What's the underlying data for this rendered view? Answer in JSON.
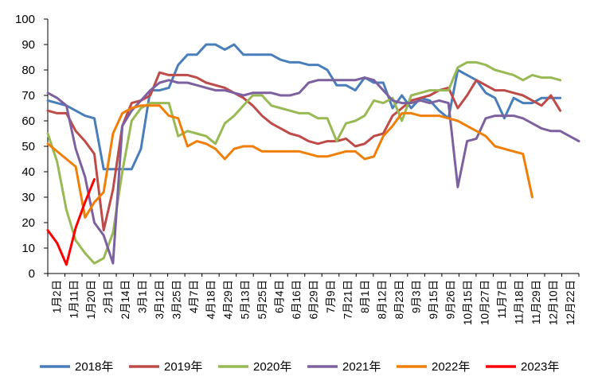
{
  "chart_data": {
    "type": "line",
    "title": "",
    "xlabel": "",
    "ylabel": "",
    "ylim": [
      0,
      100
    ],
    "yticks": [
      0,
      10,
      20,
      30,
      40,
      50,
      60,
      70,
      80,
      90,
      100
    ],
    "grid": false,
    "legend_position": "bottom",
    "x_ticks": [
      "1月2日",
      "1月11日",
      "1月20日",
      "2月1日",
      "2月14日",
      "3月1日",
      "3月12日",
      "3月25日",
      "4月7日",
      "4月18日",
      "4月29日",
      "5月13日",
      "5月25日",
      "6月4日",
      "6月16日",
      "6月29日",
      "7月9日",
      "7月21日",
      "8月1日",
      "8月12日",
      "8月23日",
      "9月3日",
      "9月15日",
      "9月26日",
      "10月15日",
      "10月27日",
      "11月7日",
      "11月18日",
      "11月29日",
      "12月10日",
      "12月22日"
    ],
    "series": [
      {
        "name": "2018年",
        "color": "#4a7ebb",
        "values": [
          68,
          67,
          66,
          64,
          62,
          61,
          41,
          41,
          41,
          41,
          49,
          72,
          72,
          73,
          82,
          86,
          86,
          90,
          90,
          88,
          90,
          86,
          86,
          86,
          86,
          84,
          83,
          83,
          82,
          82,
          80,
          74,
          74,
          72,
          77,
          75,
          75,
          65,
          70,
          65,
          69,
          68,
          64,
          61,
          80,
          78,
          76,
          71,
          69,
          61,
          69,
          67,
          67,
          69,
          69,
          69
        ]
      },
      {
        "name": "2019年",
        "color": "#be4b48",
        "values": [
          64,
          63,
          63,
          56,
          52,
          47,
          17,
          33,
          58,
          67,
          68,
          70,
          79,
          78,
          78,
          78,
          77,
          75,
          74,
          73,
          71,
          69,
          66,
          62,
          59,
          57,
          55,
          54,
          52,
          51,
          52,
          52,
          53,
          50,
          51,
          54,
          55,
          62,
          65,
          68,
          69,
          70,
          72,
          73,
          65,
          70,
          76,
          74,
          72,
          72,
          71,
          70,
          68,
          66,
          70,
          64
        ]
      },
      {
        "name": "2020年",
        "color": "#98b954",
        "values": [
          55,
          44,
          25,
          13,
          8,
          4,
          6,
          16,
          40,
          60,
          65,
          67,
          67,
          67,
          54,
          56,
          55,
          54,
          51,
          59,
          62,
          66,
          70,
          70,
          66,
          65,
          64,
          63,
          63,
          61,
          61,
          52,
          59,
          60,
          62,
          68,
          67,
          69,
          60,
          70,
          71,
          72,
          72,
          72,
          81,
          83,
          83,
          82,
          80,
          79,
          78,
          76,
          78,
          77,
          77,
          76
        ]
      },
      {
        "name": "2021年",
        "color": "#7d60a0",
        "values": [
          71,
          69,
          66,
          49,
          38,
          20,
          15,
          4,
          58,
          64,
          68,
          72,
          75,
          76,
          75,
          75,
          74,
          73,
          72,
          72,
          71,
          70,
          71,
          71,
          71,
          70,
          70,
          71,
          75,
          76,
          76,
          76,
          76,
          76,
          77,
          76,
          72,
          68,
          67,
          67,
          68,
          67,
          68,
          67,
          34,
          52,
          53,
          61,
          62,
          62,
          62,
          61,
          59,
          57,
          56,
          56,
          54,
          52
        ]
      },
      {
        "name": "2022年",
        "color": "#f07f09",
        "values": [
          51,
          48,
          45,
          42,
          22,
          28,
          32,
          55,
          63,
          65,
          66,
          66,
          66,
          62,
          61,
          50,
          52,
          51,
          49,
          45,
          49,
          50,
          50,
          48,
          48,
          48,
          48,
          48,
          47,
          46,
          46,
          47,
          48,
          48,
          45,
          46,
          54,
          58,
          63,
          63,
          62,
          62,
          62,
          61,
          60,
          58,
          56,
          54,
          50,
          49,
          48,
          47,
          30
        ]
      },
      {
        "name": "2023年",
        "color": "#ff0000",
        "values": [
          17,
          12,
          3.5,
          18,
          28,
          37
        ]
      }
    ]
  },
  "legend": [
    {
      "label": "2018年",
      "color": "#4a7ebb"
    },
    {
      "label": "2019年",
      "color": "#be4b48"
    },
    {
      "label": "2020年",
      "color": "#98b954"
    },
    {
      "label": "2021年",
      "color": "#7d60a0"
    },
    {
      "label": "2022年",
      "color": "#f07f09"
    },
    {
      "label": "2023年",
      "color": "#ff0000"
    }
  ]
}
